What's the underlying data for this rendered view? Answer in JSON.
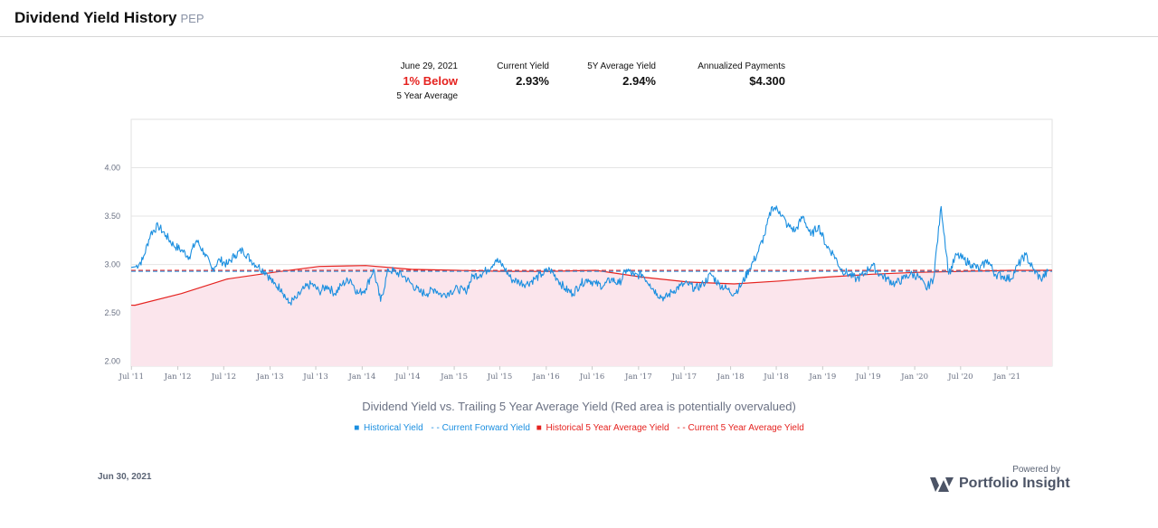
{
  "header": {
    "title": "Dividend Yield History",
    "ticker": "PEP"
  },
  "stats": {
    "date_label": "June 29, 2021",
    "comparison": "1%  Below",
    "comparison_sub": "5 Year Average",
    "current_yield_label": "Current Yield",
    "current_yield": "2.93%",
    "avg_yield_label": "5Y Average Yield",
    "avg_yield": "2.94%",
    "payments_label": "Annualized Payments",
    "payments": "$4.300"
  },
  "caption": "Dividend Yield vs. Trailing 5 Year Average Yield (Red area is potentially overvalued)",
  "legend": {
    "historical": "Historical Yield",
    "current_forward": "- - Current Forward Yield",
    "historical_avg": "Historical 5 Year Average Yield",
    "current_avg": "- - Current 5 Year Average Yield"
  },
  "footer": {
    "date": "Jun 30, 2021",
    "powered": "Powered by",
    "brand": "Portfolio Insight"
  },
  "colors": {
    "yield": "#1b8fe0",
    "average": "#e5221f",
    "fill": "#fbe5ec"
  },
  "chart_data": {
    "type": "line",
    "title": "",
    "xlabel": "",
    "ylabel": "",
    "ylim": [
      1.95,
      4.5
    ],
    "yticks": [
      "2.00",
      "2.50",
      "3.00",
      "3.50",
      "4.00"
    ],
    "xticks": [
      "Jul '11",
      "Jan '12",
      "Jul '12",
      "Jan '13",
      "Jul '13",
      "Jan '14",
      "Jul '14",
      "Jan '15",
      "Jul '15",
      "Jan '16",
      "Jul '16",
      "Jan '17",
      "Jul '17",
      "Jan '18",
      "Jul '18",
      "Jan '19",
      "Jul '19",
      "Jan '20",
      "Jul '20",
      "Jan '21"
    ],
    "x_range": [
      "2011-06-30",
      "2021-06-29"
    ],
    "grid": true,
    "legend_position": "bottom",
    "current_forward_yield": 2.93,
    "current_5y_average": 2.94,
    "series": [
      {
        "name": "Historical Yield",
        "x": [
          "2011-07",
          "2011-08",
          "2011-09",
          "2011-10",
          "2011-11",
          "2011-12",
          "2012-01",
          "2012-02",
          "2012-03",
          "2012-04",
          "2012-05",
          "2012-06",
          "2012-07",
          "2012-08",
          "2012-09",
          "2012-10",
          "2012-11",
          "2012-12",
          "2013-01",
          "2013-02",
          "2013-03",
          "2013-04",
          "2013-05",
          "2013-06",
          "2013-07",
          "2013-08",
          "2013-09",
          "2013-10",
          "2013-11",
          "2013-12",
          "2014-01",
          "2014-02",
          "2014-03",
          "2014-04",
          "2014-05",
          "2014-06",
          "2014-07",
          "2014-08",
          "2014-09",
          "2014-10",
          "2014-11",
          "2014-12",
          "2015-01",
          "2015-02",
          "2015-03",
          "2015-04",
          "2015-05",
          "2015-06",
          "2015-07",
          "2015-08",
          "2015-09",
          "2015-10",
          "2015-11",
          "2015-12",
          "2016-01",
          "2016-02",
          "2016-03",
          "2016-04",
          "2016-05",
          "2016-06",
          "2016-07",
          "2016-08",
          "2016-09",
          "2016-10",
          "2016-11",
          "2016-12",
          "2017-01",
          "2017-02",
          "2017-03",
          "2017-04",
          "2017-05",
          "2017-06",
          "2017-07",
          "2017-08",
          "2017-09",
          "2017-10",
          "2017-11",
          "2017-12",
          "2018-01",
          "2018-02",
          "2018-03",
          "2018-04",
          "2018-05",
          "2018-06",
          "2018-07",
          "2018-08",
          "2018-09",
          "2018-10",
          "2018-11",
          "2018-12",
          "2019-01",
          "2019-02",
          "2019-03",
          "2019-04",
          "2019-05",
          "2019-06",
          "2019-07",
          "2019-08",
          "2019-09",
          "2019-10",
          "2019-11",
          "2019-12",
          "2020-01",
          "2020-02",
          "2020-03",
          "2020-04",
          "2020-05",
          "2020-06",
          "2020-07",
          "2020-08",
          "2020-09",
          "2020-10",
          "2020-11",
          "2020-12",
          "2021-01",
          "2021-02",
          "2021-03",
          "2021-04",
          "2021-05",
          "2021-06"
        ],
        "values": [
          2.97,
          3.05,
          3.32,
          3.4,
          3.3,
          3.2,
          3.15,
          3.08,
          3.25,
          3.12,
          2.95,
          3.05,
          3.0,
          3.1,
          3.15,
          3.05,
          2.98,
          2.92,
          2.8,
          2.75,
          2.6,
          2.65,
          2.75,
          2.8,
          2.72,
          2.78,
          2.7,
          2.8,
          2.85,
          2.7,
          2.75,
          2.95,
          2.62,
          2.95,
          2.92,
          2.88,
          2.8,
          2.72,
          2.7,
          2.75,
          2.68,
          2.72,
          2.75,
          2.72,
          2.88,
          2.9,
          2.95,
          3.05,
          2.98,
          2.85,
          2.82,
          2.8,
          2.85,
          2.9,
          2.95,
          2.85,
          2.75,
          2.7,
          2.8,
          2.85,
          2.8,
          2.78,
          2.85,
          2.8,
          2.95,
          2.88,
          2.9,
          2.8,
          2.7,
          2.65,
          2.72,
          2.78,
          2.8,
          2.75,
          2.8,
          2.9,
          2.8,
          2.75,
          2.7,
          2.8,
          2.95,
          3.1,
          3.3,
          3.6,
          3.55,
          3.4,
          3.35,
          3.5,
          3.3,
          3.4,
          3.2,
          3.1,
          2.95,
          2.9,
          2.85,
          2.9,
          3.0,
          2.9,
          2.85,
          2.8,
          2.85,
          2.9,
          2.88,
          2.75,
          2.85,
          3.6,
          2.9,
          3.1,
          3.05,
          3.0,
          2.95,
          3.05,
          2.9,
          2.88,
          2.85,
          3.0,
          3.1,
          2.95,
          2.85,
          2.93
        ]
      },
      {
        "name": "Historical 5 Year Average Yield",
        "x": [
          "2011-07",
          "2012-01",
          "2012-07",
          "2013-01",
          "2013-07",
          "2014-01",
          "2014-07",
          "2015-01",
          "2015-07",
          "2016-01",
          "2016-07",
          "2017-01",
          "2017-07",
          "2018-01",
          "2018-07",
          "2019-01",
          "2019-07",
          "2020-01",
          "2020-07",
          "2021-01",
          "2021-06"
        ],
        "values": [
          2.58,
          2.7,
          2.85,
          2.92,
          2.98,
          2.99,
          2.95,
          2.94,
          2.93,
          2.93,
          2.94,
          2.87,
          2.82,
          2.8,
          2.83,
          2.87,
          2.9,
          2.92,
          2.93,
          2.94,
          2.94
        ]
      }
    ]
  }
}
